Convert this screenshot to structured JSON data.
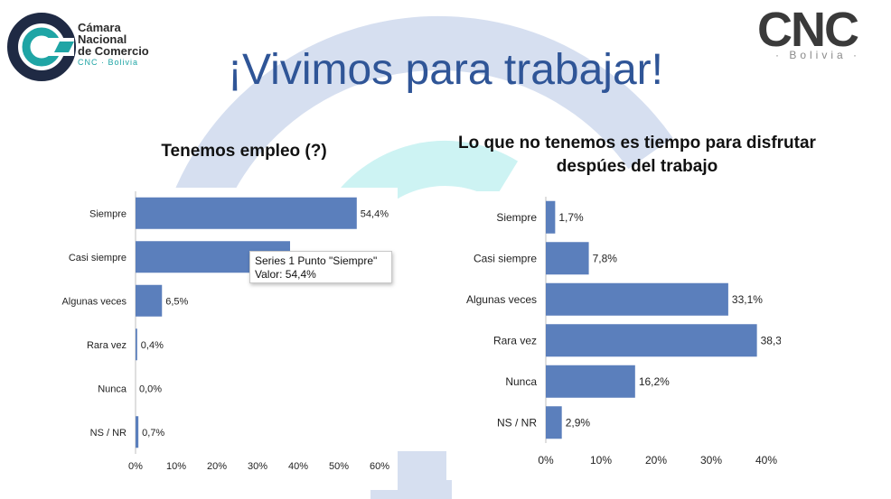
{
  "header": {
    "org_name_line1": "Cámara",
    "org_name_line2": "Nacional",
    "org_name_line3": "de Comercio",
    "org_sub": "CNC · Bolivia",
    "brand_right": "CNC",
    "brand_right_sub": "· Bolivia ·",
    "title": "¡Vivimos para trabajar!"
  },
  "colors": {
    "bar": "#5b7fbc",
    "title": "#2f5597",
    "accent": "#1fa5a5"
  },
  "tooltip": {
    "line1": "Series 1 Punto \"Siempre\"",
    "line2": "Valor: 54,4%"
  },
  "chart_data": [
    {
      "type": "bar",
      "orientation": "horizontal",
      "title": "Tenemos empleo (?)",
      "categories": [
        "Siempre",
        "Casi siempre",
        "Algunas veces",
        "Rara vez",
        "Nunca",
        "NS / NR"
      ],
      "values": [
        54.4,
        38.0,
        6.5,
        0.4,
        0.0,
        0.7
      ],
      "value_labels": [
        "54,4%",
        "",
        "6,5%",
        "0,4%",
        "0,0%",
        "0,7%"
      ],
      "xlim": [
        0,
        60
      ],
      "x_ticks": [
        "0%",
        "10%",
        "20%",
        "30%",
        "40%",
        "50%",
        "60%"
      ],
      "grid": false
    },
    {
      "type": "bar",
      "orientation": "horizontal",
      "title": "Lo que no tenemos es tiempo para disfrutar despúes del trabajo",
      "categories": [
        "Siempre",
        "Casi siempre",
        "Algunas veces",
        "Rara vez",
        "Nunca",
        "NS / NR"
      ],
      "values": [
        1.7,
        7.8,
        33.1,
        38.3,
        16.2,
        2.9
      ],
      "value_labels": [
        "1,7%",
        "7,8%",
        "33,1%",
        "38,3%",
        "16,2%",
        "2,9%"
      ],
      "xlim": [
        0,
        40
      ],
      "x_ticks": [
        "0%",
        "10%",
        "20%",
        "30%",
        "40%"
      ],
      "grid": false
    }
  ]
}
